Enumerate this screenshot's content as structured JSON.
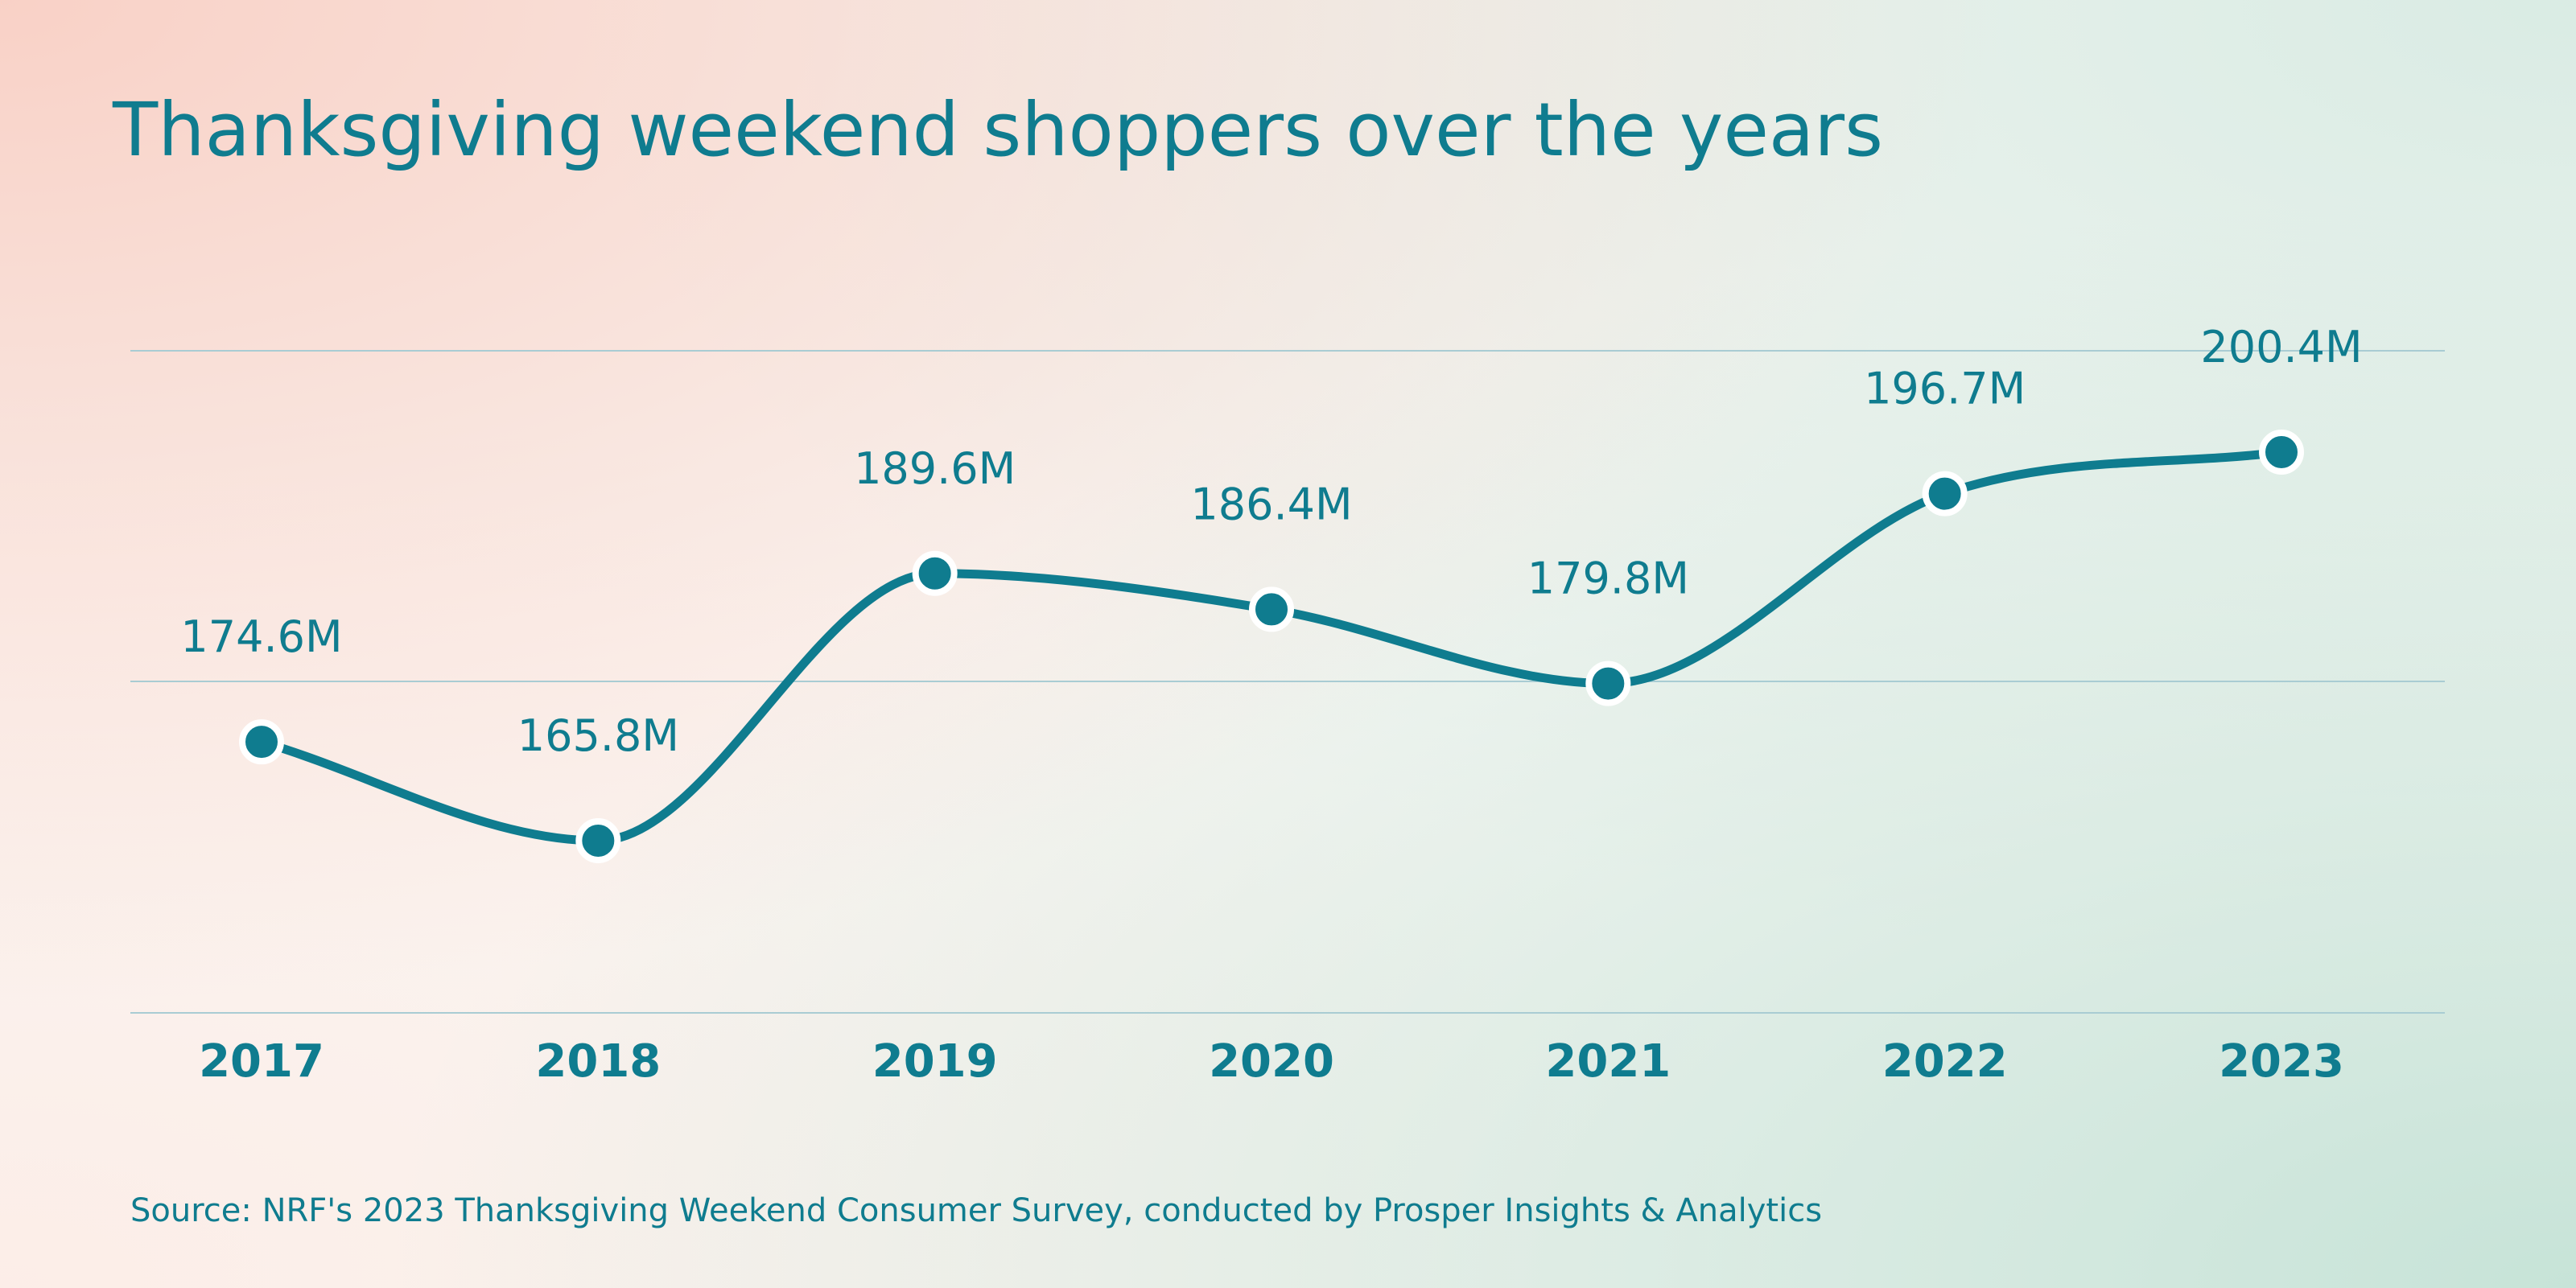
{
  "chart_data": {
    "type": "line",
    "title": "Thanksgiving weekend shoppers over the years",
    "categories": [
      "2017",
      "2018",
      "2019",
      "2020",
      "2021",
      "2022",
      "2023"
    ],
    "series": [
      {
        "values": [
          174.6,
          165.8,
          189.6,
          186.4,
          179.8,
          196.7,
          200.4
        ],
        "labels": [
          "174.6M",
          "165.8M",
          "189.6M",
          "186.4M",
          "179.8M",
          "196.7M",
          "200.4M"
        ]
      }
    ],
    "source": "Source: NRF's 2023 Thanksgiving Weekend Consumer Survey, conducted by Prosper Insights & Analytics",
    "xlabel": "",
    "ylabel": "",
    "grid": true,
    "legend": "none",
    "colors": {
      "line": "#0f7c8f",
      "text": "#0f7c8f",
      "grid": "#a9ccd3",
      "marker_outline": "#ffffff"
    }
  }
}
